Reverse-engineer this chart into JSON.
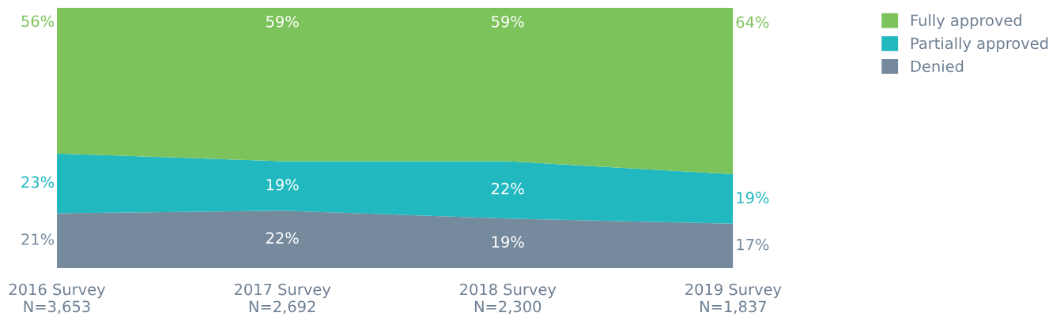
{
  "chart_data": {
    "type": "area",
    "stacked": true,
    "legend": "top right",
    "categories": [
      "2016 Survey\nN=3,653",
      "2017 Survey\nN=2,692",
      "2018 Survey\nN=2,300",
      "2019 Survey\nN=1,837"
    ],
    "series": [
      {
        "name": "Denied",
        "color": "#768a9e",
        "values": [
          21,
          22,
          19,
          17
        ],
        "value_labels": [
          "21%",
          "22%",
          "19%",
          "17%"
        ]
      },
      {
        "name": "Partially approved",
        "color": "#21b8bf",
        "values": [
          23,
          19,
          22,
          19
        ],
        "value_labels": [
          "23%",
          "19%",
          "22%",
          "19%"
        ]
      },
      {
        "name": "Fully approved",
        "color": "#7dc35b",
        "values": [
          56,
          59,
          59,
          64
        ],
        "value_labels": [
          "56%",
          "59%",
          "59%",
          "64%"
        ]
      }
    ]
  }
}
